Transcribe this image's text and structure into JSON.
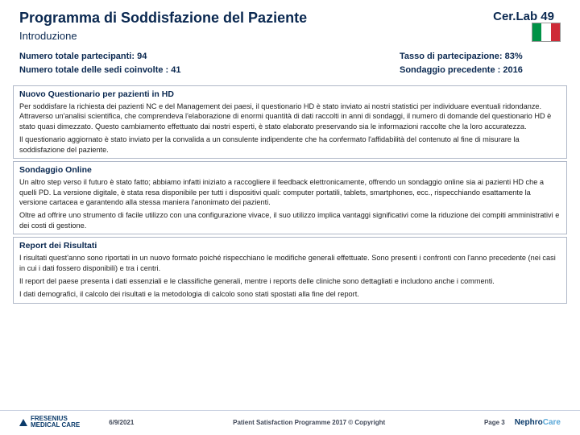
{
  "header": {
    "title": "Programma di Soddisfazione del Paziente",
    "brand": "Cer.Lab 49",
    "subtitle": "Introduzione"
  },
  "stats": {
    "participants_label": "Numero totale partecipanti: 94",
    "sites_label": "Numero totale delle sedi coinvolte : 41",
    "rate_label": "Tasso di partecipazione: 83%",
    "prev_label": "Sondaggio precedente : 2016"
  },
  "sections": {
    "s1": {
      "title": "Nuovo Questionario per pazienti in HD",
      "p1": "Per soddisfare la richiesta dei pazienti NC e del Management dei paesi, il questionario HD è stato inviato ai nostri statistici per individuare eventuali ridondanze. Attraverso un'analisi scientifica, che comprendeva l'elaborazione di enormi quantità di dati raccolti in anni di sondaggi, il numero di domande del questionario HD è stato quasi dimezzato. Questo cambiamento effettuato dai nostri esperti, è stato elaborato preservando sia le informazioni raccolte che la loro accuratezza.",
      "p2": "Il questionario aggiornato è stato inviato per la convalida a un consulente indipendente che ha confermato l'affidabilità del contenuto al fine di misurare la soddisfazione del paziente."
    },
    "s2": {
      "title": "Sondaggio Online",
      "p1": "Un altro step verso il futuro è stato fatto; abbiamo infatti iniziato a raccogliere il feedback elettronicamente, offrendo un sondaggio online sia ai pazienti HD che a quelli PD. La versione digitale, è stata resa disponibile per tutti i dispositivi quali: computer portatili, tablets, smartphones, ecc., rispecchiando esattamente la versione cartacea e garantendo alla stessa maniera l'anonimato dei pazienti.",
      "p2": "Oltre ad offrire uno strumento di facile utilizzo con una configurazione vivace, il suo utilizzo implica vantaggi significativi come la riduzione dei compiti amministrativi e dei costi di gestione."
    },
    "s3": {
      "title": "Report dei Risultati",
      "p1": "I risultati quest'anno sono riportati in un nuovo formato poiché rispecchiano le modifiche generali effettuate. Sono presenti i confronti con l'anno precedente (nei casi in cui i dati fossero disponibili) e tra i centri.",
      "p2": "Il report del paese presenta i dati essenziali e le classifiche generali, mentre i reports delle cliniche sono dettagliati e includono anche i commenti.",
      "p3": "I dati demografici, il calcolo dei risultati e la metodologia di calcolo sono stati spostati alla fine del report."
    }
  },
  "footer": {
    "logo1a": "FRESENIUS",
    "logo1b": "MEDICAL CARE",
    "date": "6/9/2021",
    "copyright": "Patient Satisfaction Programme 2017 © Copyright",
    "page": "Page 3",
    "logo2a": "Nephro",
    "logo2b": "Care"
  },
  "colors": {
    "heading": "#0a2850",
    "border": "#b0b8c8"
  }
}
